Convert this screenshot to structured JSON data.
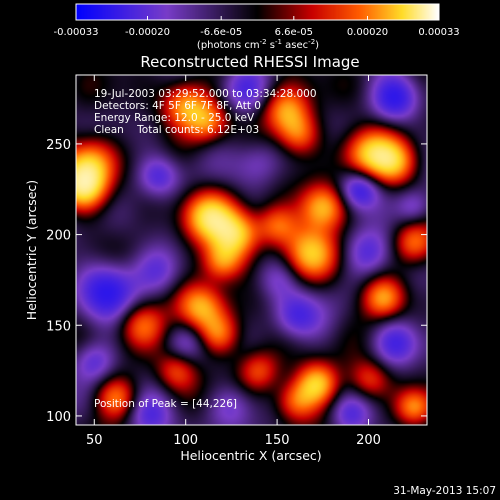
{
  "chart_data": {
    "type": "heatmap",
    "title": "Reconstructed RHESSI Image",
    "xlabel": "Heliocentric X (arcsec)",
    "ylabel": "Heliocentric Y (arcsec)",
    "xlim": [
      40,
      232
    ],
    "ylim": [
      95,
      288
    ],
    "x_ticks": [
      50,
      100,
      150,
      200
    ],
    "y_ticks": [
      100,
      150,
      200,
      250
    ],
    "colorbar": {
      "min": -0.00033,
      "max": 0.00033,
      "tick_values": [
        -0.00033,
        -0.0002,
        -6.6e-05,
        6.6e-05,
        0.0002,
        0.00033
      ],
      "tick_labels": [
        "-0.00033",
        "-0.00020",
        "-6.6e-05",
        "6.6e-05",
        "0.00020",
        "0.00033"
      ],
      "unit_label": "(photons cm-2 s-1 asec-2)"
    },
    "annotations": {
      "time_range": "19-Jul-2003 03:29:52.000 to 03:34:28.000",
      "detectors": "Detectors: 4F 5F 6F 7F 8F, Att 0",
      "energy": "Energy Range: 12.0 - 25.0 keV",
      "clean": "Clean    Total counts: 6.12E+03",
      "peak": "Position of Peak = [44,226]"
    },
    "blobs": [
      {
        "x": 44,
        "y": 226,
        "v": 1.0,
        "s": 9
      },
      {
        "x": 48,
        "y": 240,
        "v": 0.8,
        "s": 10
      },
      {
        "x": 112,
        "y": 210,
        "v": 0.95,
        "s": 10
      },
      {
        "x": 128,
        "y": 200,
        "v": 0.85,
        "s": 9
      },
      {
        "x": 120,
        "y": 185,
        "v": 0.75,
        "s": 8
      },
      {
        "x": 108,
        "y": 160,
        "v": 0.8,
        "s": 9
      },
      {
        "x": 118,
        "y": 145,
        "v": 0.65,
        "s": 8
      },
      {
        "x": 100,
        "y": 272,
        "v": 0.8,
        "s": 9
      },
      {
        "x": 112,
        "y": 262,
        "v": 0.6,
        "s": 8
      },
      {
        "x": 155,
        "y": 268,
        "v": 0.75,
        "s": 9
      },
      {
        "x": 162,
        "y": 255,
        "v": 0.6,
        "s": 8
      },
      {
        "x": 175,
        "y": 215,
        "v": 0.95,
        "s": 9
      },
      {
        "x": 168,
        "y": 190,
        "v": 0.8,
        "s": 10
      },
      {
        "x": 150,
        "y": 205,
        "v": 0.6,
        "s": 8
      },
      {
        "x": 200,
        "y": 245,
        "v": 0.85,
        "s": 10
      },
      {
        "x": 215,
        "y": 240,
        "v": 0.8,
        "s": 9
      },
      {
        "x": 172,
        "y": 118,
        "v": 0.85,
        "s": 8
      },
      {
        "x": 160,
        "y": 108,
        "v": 0.65,
        "s": 8
      },
      {
        "x": 200,
        "y": 120,
        "v": 0.55,
        "s": 8
      },
      {
        "x": 208,
        "y": 165,
        "v": 0.75,
        "s": 8
      },
      {
        "x": 225,
        "y": 195,
        "v": 0.6,
        "s": 8
      },
      {
        "x": 225,
        "y": 105,
        "v": 0.7,
        "s": 7
      },
      {
        "x": 75,
        "y": 150,
        "v": 0.6,
        "s": 9
      },
      {
        "x": 62,
        "y": 110,
        "v": 0.6,
        "s": 8
      },
      {
        "x": 95,
        "y": 125,
        "v": 0.55,
        "s": 8
      },
      {
        "x": 140,
        "y": 125,
        "v": 0.55,
        "s": 8
      },
      {
        "x": 85,
        "y": 232,
        "v": -0.55,
        "s": 8
      },
      {
        "x": 58,
        "y": 170,
        "v": -0.75,
        "s": 11
      },
      {
        "x": 132,
        "y": 280,
        "v": -0.45,
        "s": 9
      },
      {
        "x": 85,
        "y": 180,
        "v": -0.35,
        "s": 9
      },
      {
        "x": 195,
        "y": 225,
        "v": -0.8,
        "s": 8
      },
      {
        "x": 215,
        "y": 275,
        "v": -0.7,
        "s": 9
      },
      {
        "x": 160,
        "y": 155,
        "v": -0.55,
        "s": 9
      },
      {
        "x": 140,
        "y": 240,
        "v": -0.35,
        "s": 9
      },
      {
        "x": 200,
        "y": 190,
        "v": -0.45,
        "s": 9
      },
      {
        "x": 215,
        "y": 140,
        "v": -0.55,
        "s": 9
      },
      {
        "x": 80,
        "y": 100,
        "v": -0.45,
        "s": 9
      },
      {
        "x": 50,
        "y": 130,
        "v": -0.5,
        "s": 8
      },
      {
        "x": 190,
        "y": 100,
        "v": -0.45,
        "s": 8
      },
      {
        "x": 125,
        "y": 105,
        "v": -0.4,
        "s": 9
      },
      {
        "x": 225,
        "y": 215,
        "v": -0.45,
        "s": 7
      },
      {
        "x": 150,
        "y": 175,
        "v": -0.3,
        "s": 8
      },
      {
        "x": 100,
        "y": 140,
        "v": -0.3,
        "s": 8
      }
    ]
  },
  "footer_timestamp": "31-May-2013 15:07"
}
